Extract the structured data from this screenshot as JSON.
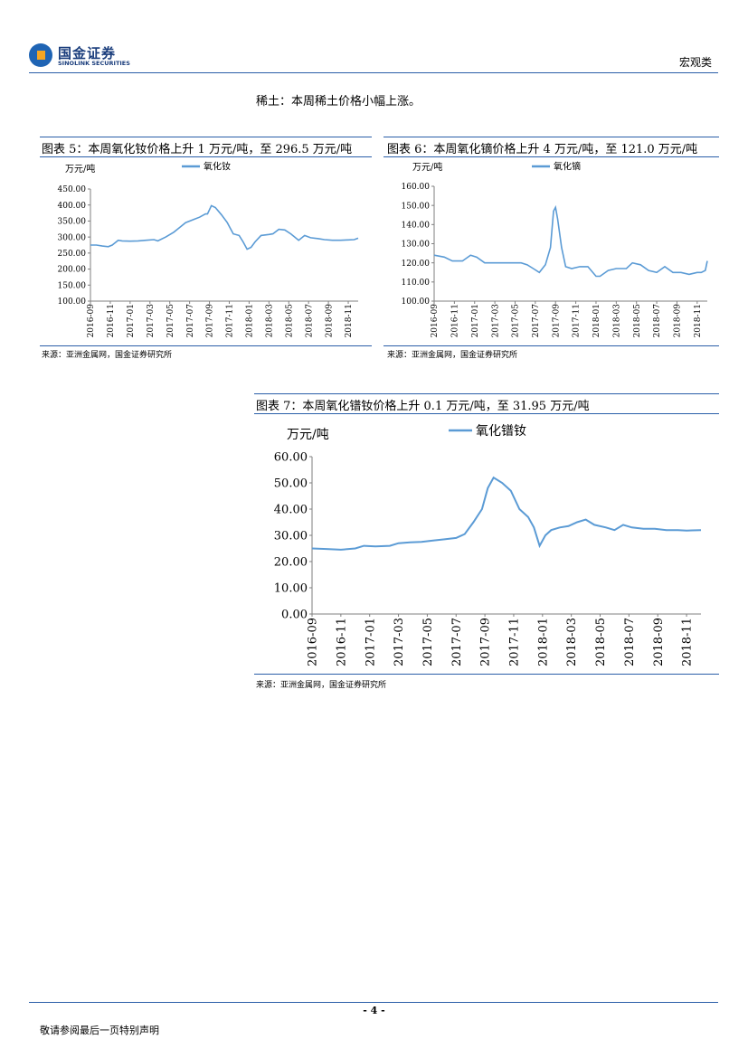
{
  "header": {
    "logo_cn": "国金证券",
    "logo_en": "SINOLINK SECURITIES",
    "category": "宏观类"
  },
  "intro": "稀土：本周稀土价格小幅上涨。",
  "charts": [
    {
      "title": "图表 5：本周氧化钕价格上升 1 万元/吨，至 296.5 万元/吨",
      "source": "来源：亚洲金属网，国金证券研究所"
    },
    {
      "title": "图表 6：本周氧化镝价格上升 4 万元/吨，至 121.0 万元/吨",
      "source": "来源：亚洲金属网，国金证券研究所"
    },
    {
      "title": "图表 7：本周氧化镨钕价格上升 0.1 万元/吨，至 31.95 万元/吨",
      "source": "来源：亚洲金属网，国金证券研究所"
    }
  ],
  "footer": {
    "page": "- 4 -",
    "note": "敬请参阅最后一页特别声明"
  },
  "chart_data": [
    {
      "type": "line",
      "ylabel": "万元/吨",
      "ylim": [
        100,
        450
      ],
      "yticks": [
        "100.00",
        "150.00",
        "200.00",
        "250.00",
        "300.00",
        "350.00",
        "400.00",
        "450.00"
      ],
      "xticks": [
        "2016-09",
        "2016-11",
        "2017-01",
        "2017-03",
        "2017-05",
        "2017-07",
        "2017-09",
        "2017-11",
        "2018-01",
        "2018-03",
        "2018-05",
        "2018-07",
        "2018-09",
        "2018-11"
      ],
      "legend": "top-center",
      "color": "#5b9bd5",
      "series": [
        {
          "name": "氧化钕",
          "x": [
            0,
            0.3,
            0.6,
            0.9,
            1.1,
            1.4,
            1.6,
            2,
            2.4,
            2.8,
            3.2,
            3.4,
            3.8,
            4.2,
            4.5,
            4.8,
            5.2,
            5.5,
            5.8,
            5.9,
            6.1,
            6.3,
            6.6,
            6.9,
            7.2,
            7.5,
            7.7,
            7.9,
            8.1,
            8.3,
            8.6,
            9,
            9.2,
            9.5,
            9.8,
            10.1,
            10.3,
            10.5,
            10.8,
            11.1,
            11.5,
            11.8,
            12.2,
            12.6,
            13,
            13.3,
            13.5
          ],
          "values": [
            275,
            275,
            272,
            270,
            275,
            290,
            288,
            287,
            288,
            290,
            292,
            288,
            300,
            315,
            330,
            345,
            355,
            362,
            372,
            372,
            398,
            392,
            370,
            345,
            310,
            305,
            285,
            262,
            268,
            285,
            305,
            308,
            310,
            324,
            322,
            310,
            300,
            290,
            305,
            298,
            295,
            292,
            290,
            290,
            291,
            292,
            296.5
          ]
        }
      ]
    },
    {
      "type": "line",
      "ylabel": "万元/吨",
      "ylim": [
        100,
        160
      ],
      "yticks": [
        "100.00",
        "110.00",
        "120.00",
        "130.00",
        "140.00",
        "150.00",
        "160.00"
      ],
      "xticks": [
        "2016-09",
        "2016-11",
        "2017-01",
        "2017-03",
        "2017-05",
        "2017-07",
        "2017-09",
        "2017-11",
        "2018-01",
        "2018-03",
        "2018-05",
        "2018-07",
        "2018-09",
        "2018-11"
      ],
      "legend": "top-center",
      "color": "#5b9bd5",
      "series": [
        {
          "name": "氧化镝",
          "x": [
            0,
            0.5,
            0.9,
            1.4,
            1.8,
            2.1,
            2.5,
            3,
            3.5,
            4,
            4.3,
            4.6,
            4.9,
            5.2,
            5.5,
            5.75,
            5.9,
            6,
            6.1,
            6.3,
            6.5,
            6.8,
            7.2,
            7.6,
            8,
            8.2,
            8.6,
            9,
            9.5,
            9.8,
            10.2,
            10.6,
            11,
            11.4,
            11.8,
            12.2,
            12.6,
            13,
            13.2,
            13.4,
            13.5
          ],
          "values": [
            124,
            123,
            121,
            121,
            124,
            123,
            120,
            120,
            120,
            120,
            120,
            119,
            117,
            115,
            119,
            128,
            147,
            149,
            143,
            128,
            118,
            117,
            118,
            118,
            113,
            113,
            116,
            117,
            117,
            120,
            119,
            116,
            115,
            118,
            115,
            115,
            114,
            115,
            115,
            116,
            121
          ]
        }
      ]
    },
    {
      "type": "line",
      "ylabel": "万元/吨",
      "ylim": [
        0,
        60
      ],
      "yticks": [
        "0.00",
        "10.00",
        "20.00",
        "30.00",
        "40.00",
        "50.00",
        "60.00"
      ],
      "xticks": [
        "2016-09",
        "2016-11",
        "2017-01",
        "2017-03",
        "2017-05",
        "2017-07",
        "2017-09",
        "2017-11",
        "2018-01",
        "2018-03",
        "2018-05",
        "2018-07",
        "2018-09",
        "2018-11"
      ],
      "legend": "top-center",
      "color": "#5b9bd5",
      "series": [
        {
          "name": "氧化镨钕",
          "x": [
            0,
            0.5,
            1,
            1.5,
            1.8,
            2.2,
            2.7,
            3,
            3.4,
            3.8,
            4.2,
            4.6,
            5,
            5.3,
            5.6,
            5.9,
            6.1,
            6.3,
            6.6,
            6.9,
            7.2,
            7.5,
            7.7,
            7.9,
            8.1,
            8.3,
            8.6,
            8.9,
            9.2,
            9.5,
            9.8,
            10.2,
            10.5,
            10.8,
            11.1,
            11.5,
            11.9,
            12.3,
            12.7,
            13,
            13.2,
            13.5
          ],
          "values": [
            25,
            24.8,
            24.5,
            25,
            26,
            25.8,
            26,
            27,
            27.3,
            27.5,
            28,
            28.5,
            29,
            30.5,
            35,
            40,
            48,
            52,
            50,
            47,
            40,
            37,
            33,
            26,
            30,
            32,
            33,
            33.5,
            35,
            36,
            34,
            33,
            32,
            34,
            33,
            32.5,
            32.5,
            32,
            32,
            31.8,
            31.9,
            31.95
          ]
        }
      ]
    }
  ]
}
